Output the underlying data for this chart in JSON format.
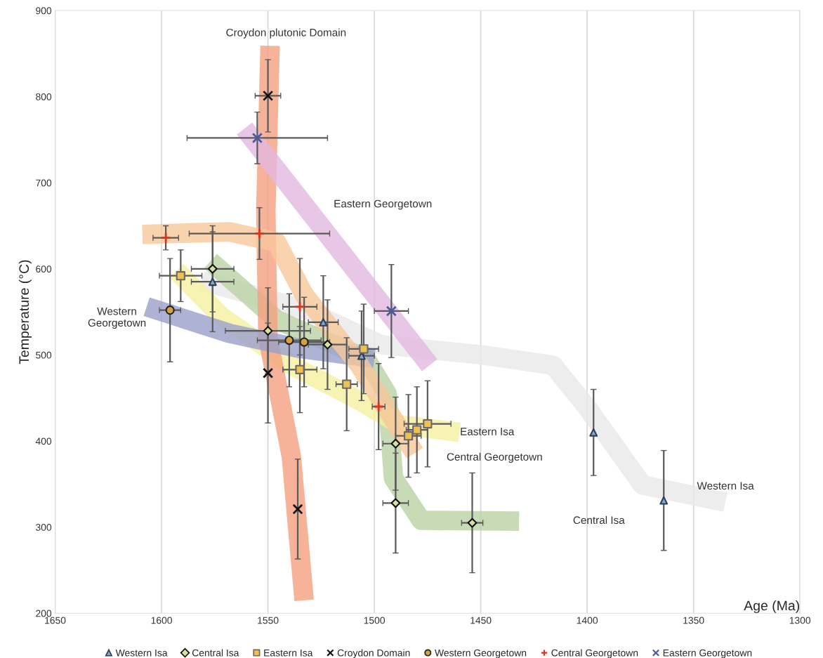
{
  "chart_data": {
    "type": "scatter",
    "xlabel": "Age (Ma)",
    "ylabel": "Temperature (°C)",
    "xlim": [
      1650,
      1300
    ],
    "xticks": [
      1650,
      1600,
      1550,
      1500,
      1450,
      1400,
      1350,
      1300
    ],
    "ylim": [
      200,
      900
    ],
    "yticks": [
      200,
      300,
      400,
      500,
      600,
      700,
      800,
      900
    ],
    "grid": "x",
    "legend": "bottom",
    "series": [
      {
        "type": "line",
        "color": "#e8e8ea",
        "x": [
          1581,
          1533,
          1497,
          1449,
          1416,
          1400,
          1374,
          1335
        ],
        "values": [
          586,
          553,
          512,
          500,
          488,
          439,
          349,
          329
        ]
      },
      {
        "type": "line",
        "color": "#b9d3a4",
        "x": [
          1577,
          1546,
          1504,
          1494,
          1491,
          1478,
          1432
        ],
        "values": [
          609,
          541,
          496,
          455,
          357,
          308,
          307
        ]
      },
      {
        "type": "line",
        "color": "#f4f0a0",
        "x": [
          1593,
          1572,
          1539,
          1507,
          1488,
          1460
        ],
        "values": [
          598,
          545,
          488,
          447,
          419,
          410
        ]
      },
      {
        "type": "line",
        "color": "#f5a080",
        "x": [
          1549,
          1551,
          1550,
          1539,
          1533
        ],
        "values": [
          859,
          667,
          520,
          382,
          215
        ]
      },
      {
        "type": "line",
        "color": "#9aa0cc",
        "x": [
          1607,
          1568,
          1536,
          1500
        ],
        "values": [
          556,
          525,
          508,
          496
        ]
      },
      {
        "type": "line",
        "color": "#f7c79a",
        "x": [
          1609,
          1568,
          1546,
          1533,
          1507,
          1481
        ],
        "values": [
          640,
          643,
          631,
          570,
          488,
          386
        ]
      },
      {
        "type": "line",
        "color": "#e2b8e0",
        "x": [
          1561,
          1474
        ],
        "values": [
          763,
          488
        ]
      },
      {
        "name": "Western Isa",
        "marker": "triangle",
        "color": "#8aa8c0",
        "x": [
          1576,
          1524,
          1506,
          1397,
          1364
        ],
        "values": [
          585,
          538,
          499,
          410,
          331
        ],
        "errors": [
          58,
          54,
          52,
          50,
          58
        ],
        "xerrors": [
          10,
          7,
          6,
          null,
          null
        ]
      },
      {
        "name": "Central Isa",
        "marker": "diamond",
        "color": "#d8e0a0",
        "x": [
          1576,
          1550,
          1522,
          1490,
          1490,
          1454
        ],
        "values": [
          600,
          528,
          512,
          397,
          328,
          305
        ],
        "errors": [
          50,
          50,
          52,
          54,
          58,
          58
        ],
        "xerrors": [
          10,
          20,
          9,
          6,
          6,
          5
        ]
      },
      {
        "name": "Eastern Isa",
        "marker": "square",
        "color": "#f0c050",
        "x": [
          1591,
          1535,
          1513,
          1505,
          1484,
          1480,
          1475
        ],
        "values": [
          592,
          483,
          466,
          507,
          406,
          413,
          420
        ],
        "errors": [
          30,
          50,
          54,
          52,
          48,
          50,
          50
        ],
        "xerrors": [
          10,
          8,
          5,
          7,
          6,
          5,
          11
        ]
      },
      {
        "name": "Croydon Domain",
        "marker": "cross",
        "color": "#111111",
        "x": [
          1550,
          1550,
          1536
        ],
        "values": [
          801,
          479,
          321
        ],
        "errors": [
          42,
          58,
          58
        ],
        "xerrors": [
          6,
          null,
          null
        ]
      },
      {
        "name": "Western Georgetown",
        "marker": "circle",
        "color": "#d4a040",
        "x": [
          1596,
          1540,
          1533
        ],
        "values": [
          552,
          517,
          515
        ],
        "errors": [
          60,
          54,
          52
        ],
        "xerrors": [
          5,
          15,
          12
        ]
      },
      {
        "name": "Central Georgetown",
        "marker": "plus",
        "color": "#e03020",
        "x": [
          1598,
          1554,
          1535,
          1498
        ],
        "values": [
          636,
          641,
          556,
          440
        ],
        "errors": [
          14,
          30,
          56,
          50
        ],
        "xerrors": [
          6,
          33,
          8,
          3
        ]
      },
      {
        "name": "Eastern Georgetown",
        "marker": "cross",
        "color": "#4a5aa0",
        "x": [
          1555,
          1492
        ],
        "values": [
          752,
          551
        ],
        "errors": [
          30,
          54
        ],
        "xerrors": [
          33,
          8
        ]
      }
    ],
    "annotations": [
      "Croydon plutonic Domain",
      "Eastern Georgetown",
      "Western\nGeorgetown",
      "Eastern Isa",
      "Central Georgetown",
      "Central Isa",
      "Western Isa"
    ]
  }
}
